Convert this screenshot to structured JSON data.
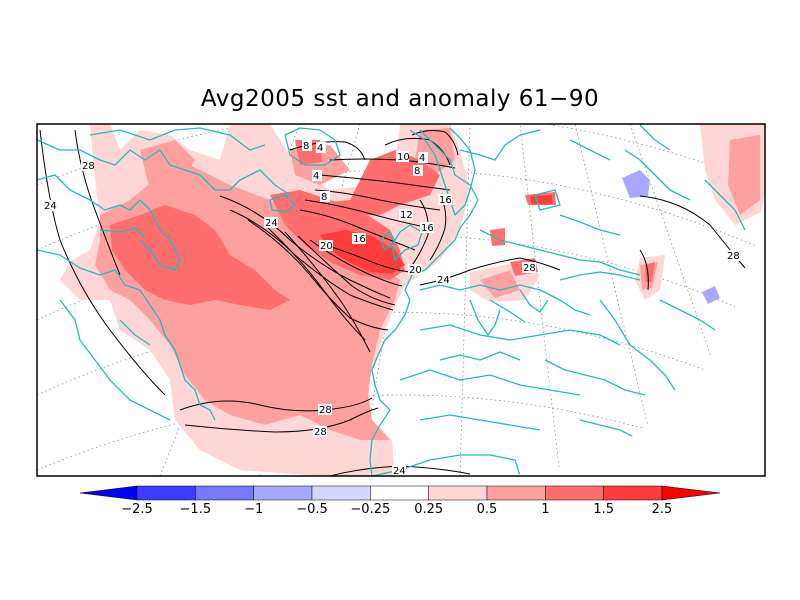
{
  "title": "Avg2005 sst and anomaly 61−90",
  "colorbar": {
    "colors": [
      "#0000ff",
      "#3c3cff",
      "#7878ff",
      "#a8a8ff",
      "#d6d6ff",
      "#ffffff",
      "#ffd6d6",
      "#ffa0a0",
      "#ff6e6e",
      "#ff3c3c",
      "#ff0000"
    ],
    "ticks": [
      "−2.5",
      "−1.5",
      "−1",
      "−0.5",
      "−0.25",
      "0.25",
      "0.5",
      "1",
      "1.5",
      "2.5"
    ]
  },
  "contour_labels": [
    "28",
    "24",
    "8",
    "4",
    "4",
    "8",
    "10",
    "4",
    "8",
    "12",
    "16",
    "16",
    "20",
    "24",
    "20",
    "16",
    "24",
    "28",
    "28",
    "28",
    "28",
    "24"
  ],
  "colors": {
    "coast": "#1fbcbc",
    "contour": "#000000",
    "grid": "#8c8c8c"
  }
}
